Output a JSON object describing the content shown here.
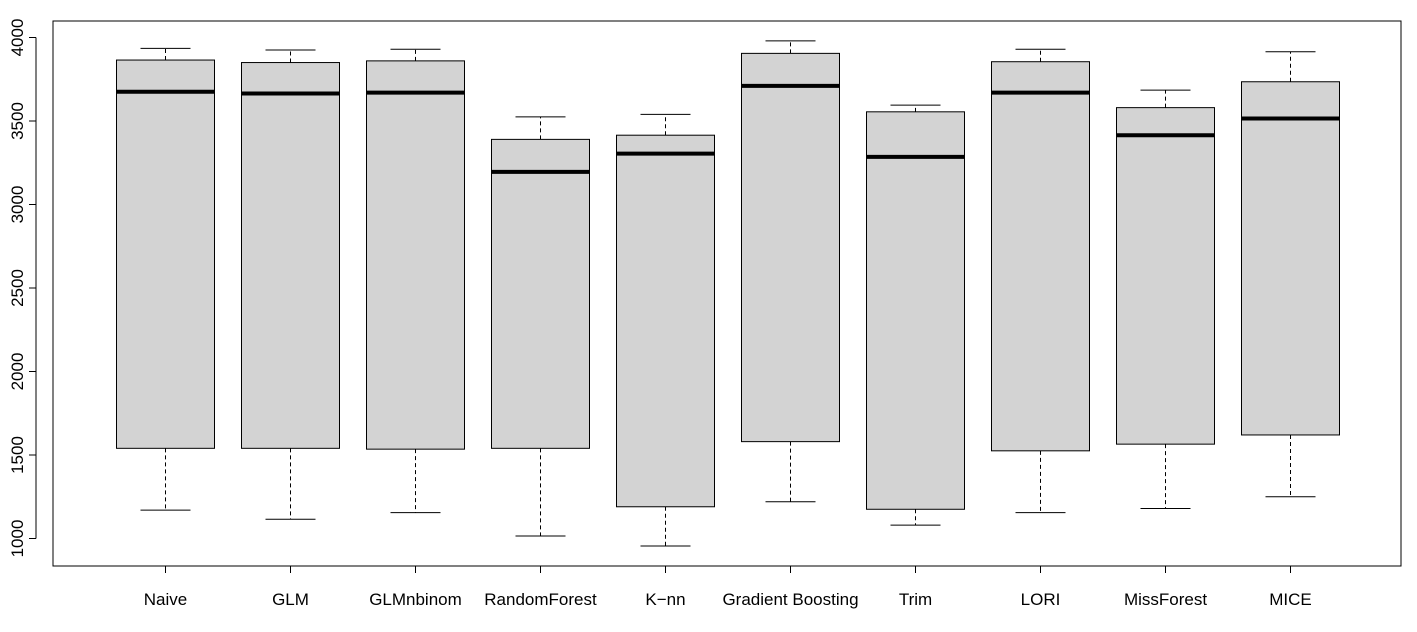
{
  "chart_data": {
    "type": "boxplot",
    "title": "",
    "xlabel": "",
    "ylabel": "",
    "ylim": [
      870,
      4090
    ],
    "yticks": [
      1000,
      1500,
      2000,
      2500,
      3000,
      3500,
      4000
    ],
    "ytick_labels": [
      "1000",
      "1500",
      "2000",
      "2500",
      "3000",
      "3500",
      "4000"
    ],
    "box_fill": "#d3d3d3",
    "line_color": "#000000",
    "boxes": [
      {
        "label": "Naive",
        "whisker_low": 1170,
        "q1": 1540,
        "median": 3675,
        "q3": 3865,
        "whisker_high": 3935
      },
      {
        "label": "GLM",
        "whisker_low": 1115,
        "q1": 1540,
        "median": 3665,
        "q3": 3850,
        "whisker_high": 3925
      },
      {
        "label": "GLMnbinom",
        "whisker_low": 1155,
        "q1": 1535,
        "median": 3670,
        "q3": 3860,
        "whisker_high": 3930
      },
      {
        "label": "RandomForest",
        "whisker_low": 1015,
        "q1": 1540,
        "median": 3195,
        "q3": 3390,
        "whisker_high": 3525
      },
      {
        "label": "K−nn",
        "whisker_low": 955,
        "q1": 1190,
        "median": 3305,
        "q3": 3415,
        "whisker_high": 3540
      },
      {
        "label": "Gradient Boosting",
        "whisker_low": 1220,
        "q1": 1580,
        "median": 3710,
        "q3": 3905,
        "whisker_high": 3980
      },
      {
        "label": "Trim",
        "whisker_low": 1080,
        "q1": 1175,
        "median": 3285,
        "q3": 3555,
        "whisker_high": 3595
      },
      {
        "label": "LORI",
        "whisker_low": 1155,
        "q1": 1525,
        "median": 3670,
        "q3": 3855,
        "whisker_high": 3930
      },
      {
        "label": "MissForest",
        "whisker_low": 1180,
        "q1": 1565,
        "median": 3415,
        "q3": 3580,
        "whisker_high": 3685
      },
      {
        "label": "MICE",
        "whisker_low": 1250,
        "q1": 1620,
        "median": 3515,
        "q3": 3735,
        "whisker_high": 3915
      }
    ]
  }
}
